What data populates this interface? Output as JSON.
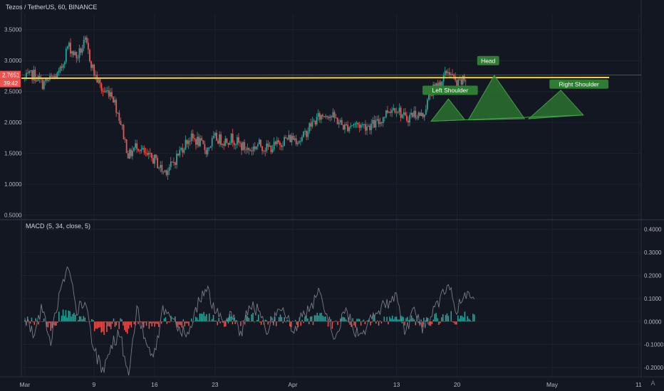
{
  "header": {
    "symbol_line": "Tezos / TetherUS, 60, BINANCE"
  },
  "indicator": {
    "title": "MACD (5, 34, close, 5)"
  },
  "annotations": {
    "left_shoulder": "Left Shoulder",
    "head": "Head",
    "right_shoulder": "Right Shoulder"
  },
  "price_badge": {
    "price": "2.7651",
    "countdown": "39:42",
    "color": "#ef5350"
  },
  "corner": {
    "icon": "auto-scale-icon",
    "label": "A"
  },
  "colors": {
    "background": "#131722",
    "grid": "#1e222d",
    "up": "#26a69a",
    "down": "#ef5350",
    "resistance_line": "#f5d23c",
    "pattern_fill": "#2e7d32",
    "label_bg": "#2e7d32",
    "macd_line": "#787b86"
  },
  "chart_data": [
    {
      "type": "candlestick",
      "title": "Tezos / TetherUS, 60, BINANCE",
      "x_ticks": [
        "Mar",
        "9",
        "16",
        "23",
        "Apr",
        "13",
        "20",
        "May",
        "11"
      ],
      "y_ticks": [
        "3.5000",
        "3.0000",
        "2.5000",
        "2.0000",
        "1.5000",
        "1.0000",
        "0.5000"
      ],
      "ylim": [
        0.45,
        3.75
      ],
      "x_range_days": [
        -0.4,
        71.3
      ],
      "last_price": 2.7651,
      "grid": true,
      "price_path": [
        [
          0,
          2.7
        ],
        [
          1,
          2.78
        ],
        [
          2,
          2.62
        ],
        [
          3,
          2.7
        ],
        [
          4,
          2.78
        ],
        [
          5,
          3.25
        ],
        [
          6,
          3.05
        ],
        [
          7,
          3.3
        ],
        [
          8,
          2.8
        ],
        [
          9,
          2.5
        ],
        [
          10,
          2.5
        ],
        [
          11,
          2.05
        ],
        [
          12,
          1.45
        ],
        [
          13,
          1.65
        ],
        [
          14,
          1.45
        ],
        [
          15,
          1.4
        ],
        [
          16,
          1.2
        ],
        [
          17,
          1.3
        ],
        [
          18,
          1.55
        ],
        [
          19,
          1.75
        ],
        [
          20,
          1.7
        ],
        [
          21,
          1.55
        ],
        [
          22,
          1.75
        ],
        [
          23,
          1.7
        ],
        [
          24,
          1.75
        ],
        [
          25,
          1.62
        ],
        [
          26,
          1.55
        ],
        [
          27,
          1.65
        ],
        [
          28,
          1.58
        ],
        [
          29,
          1.62
        ],
        [
          30,
          1.72
        ],
        [
          31,
          1.75
        ],
        [
          32,
          1.72
        ],
        [
          33,
          1.95
        ],
        [
          34,
          2.08
        ],
        [
          35,
          2.15
        ],
        [
          36,
          2.05
        ],
        [
          37,
          1.92
        ],
        [
          38,
          1.98
        ],
        [
          39,
          1.95
        ],
        [
          40,
          1.95
        ],
        [
          41,
          2.0
        ],
        [
          42,
          2.2
        ],
        [
          43,
          2.25
        ],
        [
          44,
          2.05
        ],
        [
          45,
          2.15
        ],
        [
          46,
          2.1
        ],
        [
          47,
          2.5
        ],
        [
          48,
          2.62
        ],
        [
          49,
          2.85
        ],
        [
          50,
          2.6
        ],
        [
          51,
          2.7
        ]
      ],
      "resistance_level": 2.715,
      "head_and_shoulders": {
        "left_shoulder": [
          {
            "day": 47.0,
            "price": 2.02
          },
          {
            "day": 49.0,
            "price": 2.38
          },
          {
            "day": 50.9,
            "price": 2.04
          }
        ],
        "head": [
          {
            "day": 51.3,
            "price": 2.04
          },
          {
            "day": 54.3,
            "price": 2.76
          },
          {
            "day": 57.8,
            "price": 2.06
          }
        ],
        "right_shoulder": [
          {
            "day": 58.3,
            "price": 2.06
          },
          {
            "day": 62.0,
            "price": 2.52
          },
          {
            "day": 64.6,
            "price": 2.12
          }
        ]
      }
    },
    {
      "type": "line",
      "title": "MACD (5, 34, close, 5)",
      "y_ticks": [
        "0.4000",
        "0.3000",
        "0.2000",
        "0.1000",
        "0.0000",
        "-0.1000",
        "-0.2000"
      ],
      "ylim": [
        -0.24,
        0.43
      ],
      "macd_path": [
        [
          0,
          0.02
        ],
        [
          1,
          -0.05
        ],
        [
          2,
          0.06
        ],
        [
          3,
          -0.08
        ],
        [
          4,
          0.12
        ],
        [
          5,
          0.23
        ],
        [
          6,
          0.05
        ],
        [
          7,
          0.08
        ],
        [
          8,
          -0.12
        ],
        [
          9,
          -0.22
        ],
        [
          10,
          -0.1
        ],
        [
          11,
          -0.05
        ],
        [
          12,
          -0.24
        ],
        [
          13,
          0.05
        ],
        [
          14,
          -0.08
        ],
        [
          15,
          -0.15
        ],
        [
          16,
          0.06
        ],
        [
          17,
          0.02
        ],
        [
          18,
          -0.03
        ],
        [
          19,
          -0.05
        ],
        [
          20,
          0.08
        ],
        [
          21,
          0.15
        ],
        [
          22,
          0.05
        ],
        [
          23,
          -0.02
        ],
        [
          24,
          0.03
        ],
        [
          25,
          -0.05
        ],
        [
          26,
          0.07
        ],
        [
          27,
          0.05
        ],
        [
          28,
          -0.03
        ],
        [
          29,
          0.02
        ],
        [
          30,
          0.05
        ],
        [
          31,
          -0.05
        ],
        [
          32,
          0.03
        ],
        [
          33,
          0.05
        ],
        [
          34,
          0.12
        ],
        [
          35,
          0.02
        ],
        [
          36,
          -0.08
        ],
        [
          37,
          0.06
        ],
        [
          38,
          -0.03
        ],
        [
          39,
          -0.06
        ],
        [
          40,
          0.03
        ],
        [
          41,
          0.05
        ],
        [
          42,
          0.08
        ],
        [
          43,
          0.12
        ],
        [
          44,
          -0.05
        ],
        [
          45,
          0.06
        ],
        [
          46,
          -0.03
        ],
        [
          47,
          0.02
        ],
        [
          48,
          0.1
        ],
        [
          49,
          0.15
        ],
        [
          50,
          0.05
        ],
        [
          51,
          0.12
        ],
        [
          52,
          0.08
        ]
      ]
    }
  ]
}
